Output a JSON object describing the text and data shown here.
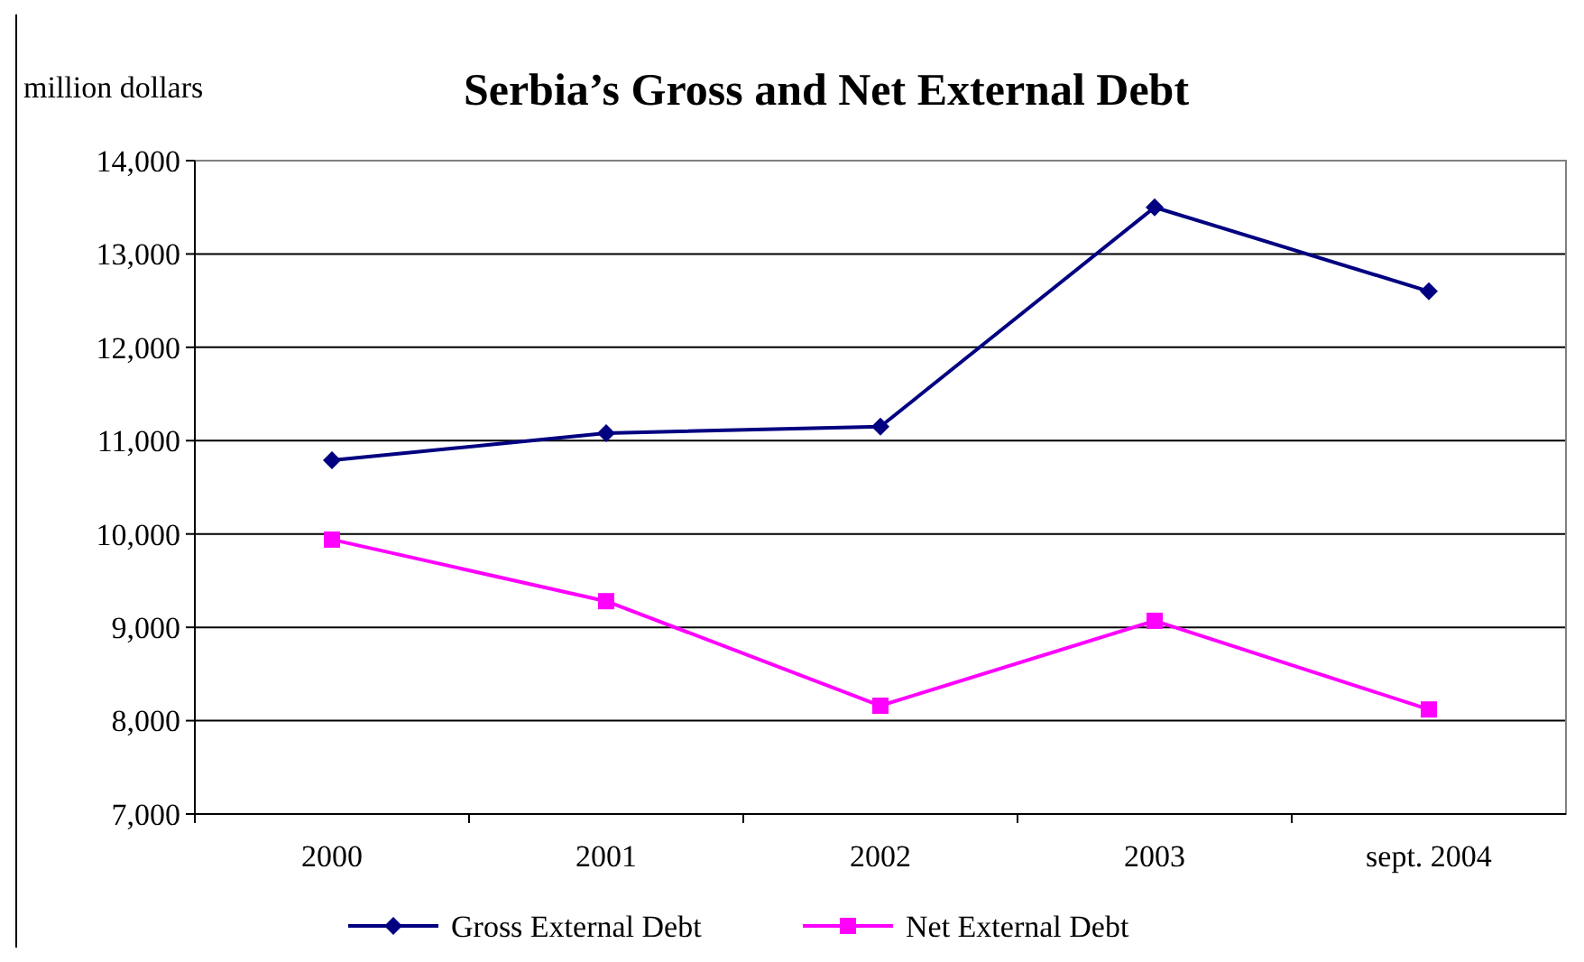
{
  "chart_data": {
    "type": "line",
    "title": "Serbia’s Gross and Net External Debt",
    "ylabel": "million dollars",
    "categories": [
      "2000",
      "2001",
      "2002",
      "2003",
      "sept. 2004"
    ],
    "series": [
      {
        "name": "Gross External Debt",
        "color": "#000080",
        "marker": "diamond",
        "values": [
          10790,
          11080,
          11150,
          13500,
          12600
        ]
      },
      {
        "name": "Net External Debt",
        "color": "#ff00ff",
        "marker": "square",
        "values": [
          9940,
          9280,
          8160,
          9070,
          8120
        ]
      }
    ],
    "ylim": [
      7000,
      14000
    ],
    "yticks": [
      {
        "value": 7000,
        "label": "7,000"
      },
      {
        "value": 8000,
        "label": "8,000"
      },
      {
        "value": 9000,
        "label": "9,000"
      },
      {
        "value": 10000,
        "label": "10,000"
      },
      {
        "value": 11000,
        "label": "11,000"
      },
      {
        "value": 12000,
        "label": "12,000"
      },
      {
        "value": 13000,
        "label": "13,000"
      },
      {
        "value": 14000,
        "label": "14,000"
      }
    ],
    "grid": "y",
    "legend": "bottom"
  }
}
